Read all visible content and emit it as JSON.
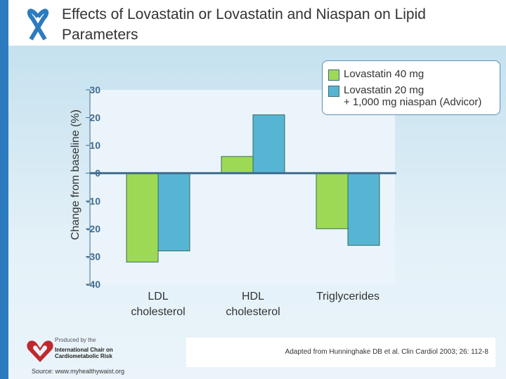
{
  "title": "Effects of Lovastatin or Lovastatin and Niaspan on Lipid Parameters",
  "footer": {
    "produced_by": "Produced by the",
    "org_line1": "International Chair on",
    "org_line2": "Cardiometabolic Risk",
    "source": "Source: www.myhealthywaist.org",
    "citation": "Adapted from Hunninghake DB et al. Clin Cardiol 2003; 26: 112-8"
  },
  "colors": {
    "green": "#9ed956",
    "blue": "#56b5d3",
    "axis": "#3f6b8e",
    "strip": "#2d7bbf",
    "logo_red": "#c0282d"
  },
  "chart_data": {
    "type": "bar",
    "ylabel": "Change from baseline (%)",
    "categories": [
      "LDL cholesterol",
      "HDL cholesterol",
      "Triglycerides"
    ],
    "category_lines": [
      [
        "LDL",
        "cholesterol"
      ],
      [
        "HDL",
        "cholesterol"
      ],
      [
        "Triglycerides"
      ]
    ],
    "ylim": [
      -40,
      30
    ],
    "yticks": [
      30,
      20,
      10,
      0,
      -10,
      -20,
      -30,
      -40
    ],
    "legend_position": "top-right",
    "series": [
      {
        "name": "Lovastatin 40 mg",
        "legend_lines": [
          "Lovastatin 40 mg"
        ],
        "color": "#9ed956",
        "values": [
          -32,
          6,
          -20
        ]
      },
      {
        "name": "Lovastatin 20 mg + 1,000 mg niaspan (Advicor)",
        "legend_lines": [
          "Lovastatin 20 mg",
          "+ 1,000 mg niaspan (Advicor)"
        ],
        "color": "#56b5d3",
        "values": [
          -28,
          21,
          -26
        ]
      }
    ]
  }
}
